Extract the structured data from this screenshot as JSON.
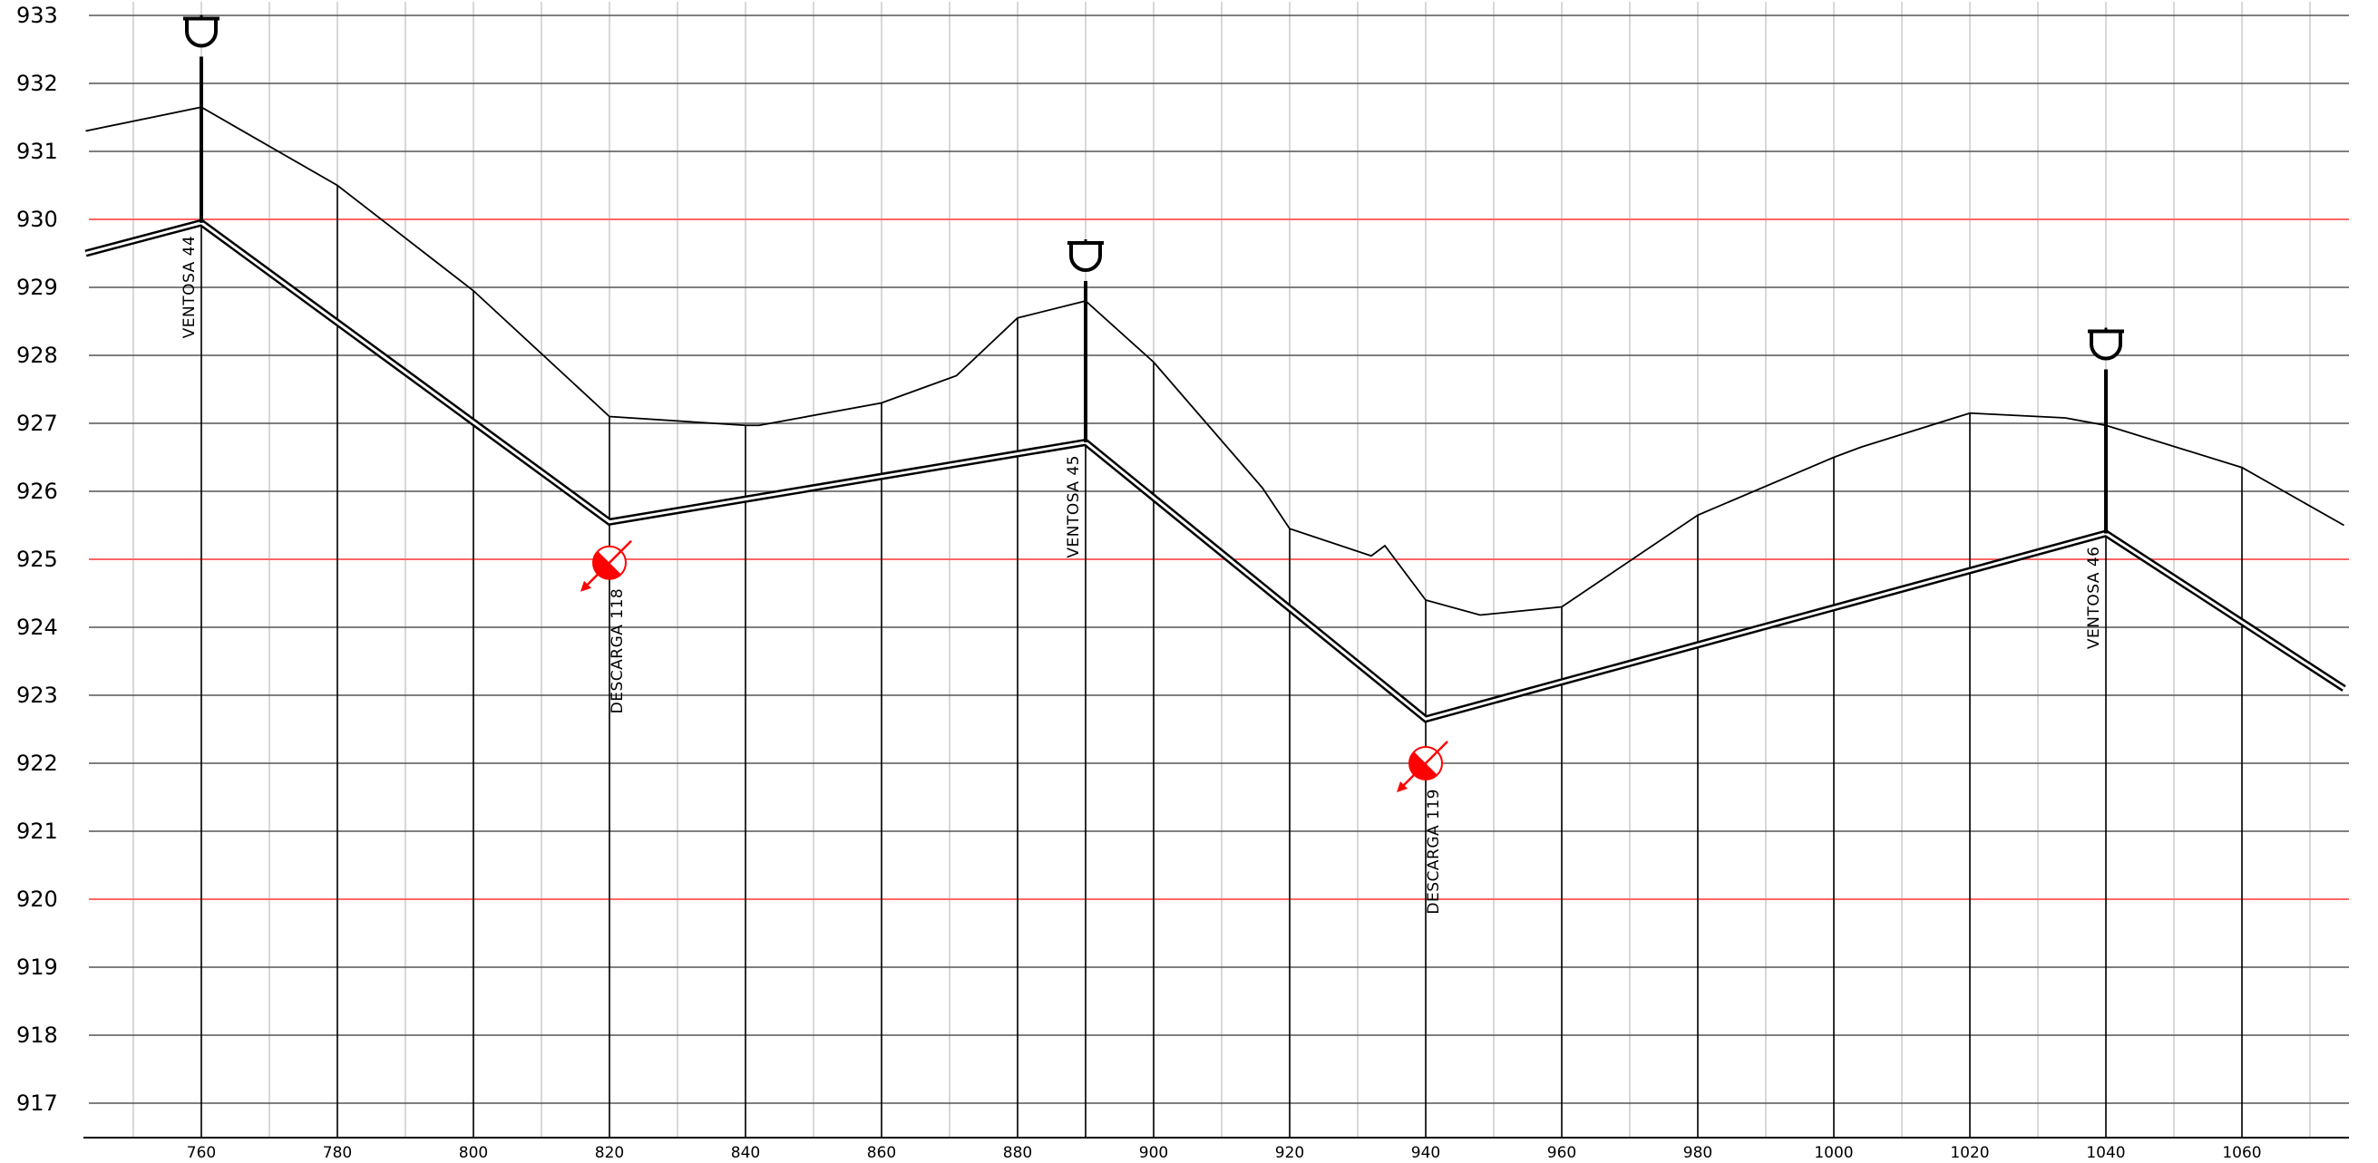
{
  "chart_data": {
    "type": "line",
    "title": "",
    "xlabel": "",
    "ylabel": "",
    "xlim": [
      743,
      1075
    ],
    "ylim": [
      916.5,
      933
    ],
    "x_ticks": [
      "760",
      "780",
      "800",
      "820",
      "840",
      "860",
      "880",
      "900",
      "920",
      "940",
      "960",
      "980",
      "1000",
      "1020",
      "1040",
      "1060"
    ],
    "y_ticks": [
      "917",
      "918",
      "919",
      "920",
      "921",
      "922",
      "923",
      "924",
      "925",
      "926",
      "927",
      "928",
      "929",
      "930",
      "931",
      "932",
      "933"
    ],
    "highlighted_y_levels": [
      920,
      925,
      930
    ],
    "grid": true,
    "colors": {
      "ground": "#000000",
      "pipe": "#000000",
      "grid_major": "#555555",
      "grid_minor": "#cccccc",
      "highlight": "#ff6666",
      "drain": "#ff0000"
    },
    "series": [
      {
        "x": [
          743,
          760,
          780,
          800,
          820,
          840,
          842,
          860,
          871,
          880,
          890,
          900,
          916,
          920,
          932,
          934,
          940,
          948,
          960,
          980,
          1000,
          1004,
          1020,
          1034,
          1040,
          1060,
          1075
        ],
        "y": [
          931.3,
          931.65,
          930.5,
          928.95,
          927.1,
          926.97,
          926.97,
          927.3,
          927.7,
          928.55,
          928.8,
          927.9,
          926.05,
          925.45,
          925.05,
          925.2,
          924.4,
          924.18,
          924.3,
          925.65,
          926.5,
          926.65,
          927.15,
          927.08,
          926.97,
          926.35,
          925.5
        ]
      },
      {
        "x": [
          743,
          760,
          820,
          890,
          940,
          1040,
          1075
        ],
        "y": [
          929.5,
          929.95,
          925.55,
          926.72,
          922.65,
          925.38,
          923.1
        ]
      }
    ],
    "stations": [
      760,
      780,
      800,
      820,
      840,
      860,
      880,
      890,
      900,
      920,
      940,
      960,
      980,
      1000,
      1020,
      1040,
      1060
    ],
    "air_valves": [
      {
        "x": 760,
        "y_pipe": 929.95,
        "y_top": 932.5,
        "label": "VENTOSA  44"
      },
      {
        "x": 890,
        "y_pipe": 926.72,
        "y_top": 929.2,
        "label": "VENTOSA  45"
      },
      {
        "x": 1040,
        "y_pipe": 925.38,
        "y_top": 927.9,
        "label": "VENTOSA  46"
      }
    ],
    "drains": [
      {
        "x": 820,
        "y": 924.95,
        "label": "DESCARGA 118"
      },
      {
        "x": 940,
        "y": 922.0,
        "label": "DESCARGA 119"
      }
    ]
  }
}
